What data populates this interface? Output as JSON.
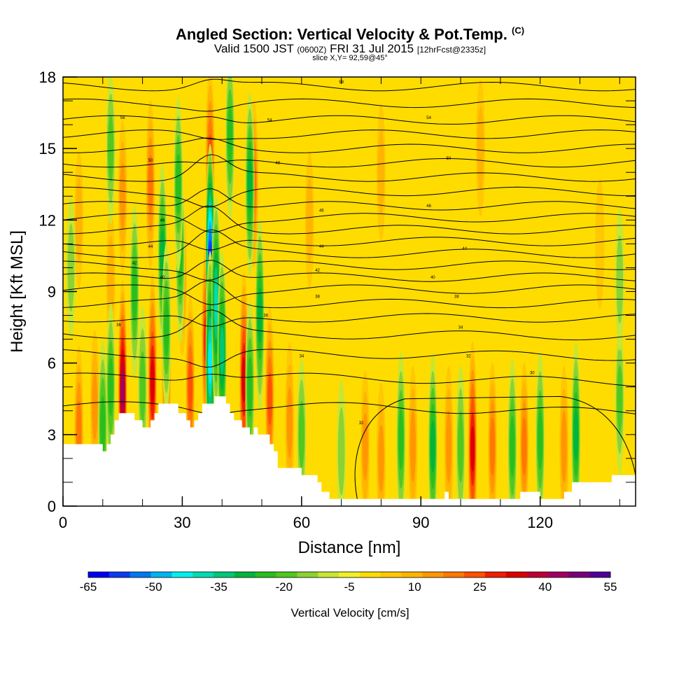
{
  "title": {
    "main": "Angled Section: Vertical Velocity & Pot.Temp.",
    "main_sup": "(C)",
    "valid": "Valid 1500 JST",
    "valid_utc": "(0600Z)",
    "date": "FRI 31 Jul 2015",
    "forecast": "[12hrFcst@2335z]",
    "slice": "slice X,Y= 92,59@45°"
  },
  "chart_data": {
    "type": "heatmap",
    "xlabel": "Distance [nm]",
    "ylabel": "Height [Kft MSL]",
    "xlim": [
      0,
      144
    ],
    "ylim": [
      0,
      18
    ],
    "x_ticks": [
      0,
      30,
      60,
      90,
      120
    ],
    "y_ticks": [
      0,
      3,
      6,
      9,
      12,
      15,
      18
    ],
    "colorbar": {
      "label": "Vertical Velocity [cm/s]",
      "tick_labels": [
        "-65",
        "-50",
        "-35",
        "-20",
        "-5",
        "10",
        "25",
        "40",
        "55"
      ],
      "levels": [
        -65,
        -60,
        -55,
        -50,
        -45,
        -40,
        -35,
        -30,
        -25,
        -20,
        -15,
        -10,
        -5,
        0,
        5,
        10,
        15,
        20,
        25,
        30,
        35,
        40,
        45,
        50,
        55
      ],
      "colors": [
        "#0000f0",
        "#0a3cf0",
        "#0078f0",
        "#00b4f0",
        "#00f0f0",
        "#00dcb4",
        "#00c878",
        "#00b43c",
        "#28be1e",
        "#50c81e",
        "#8cd232",
        "#c8e632",
        "#f0f028",
        "#ffdc00",
        "#ffc800",
        "#ffb400",
        "#ff9600",
        "#ff7800",
        "#ff5000",
        "#f01e00",
        "#dc0000",
        "#be0032",
        "#a00064",
        "#780078",
        "#500096"
      ]
    },
    "terrain_kft": [
      [
        0,
        2.6
      ],
      [
        10,
        2.6
      ],
      [
        10,
        2.3
      ],
      [
        11,
        2.3
      ],
      [
        11,
        2.6
      ],
      [
        12,
        2.6
      ],
      [
        12,
        3.0
      ],
      [
        13,
        3.0
      ],
      [
        13,
        3.6
      ],
      [
        14,
        3.6
      ],
      [
        14,
        3.9
      ],
      [
        18,
        3.9
      ],
      [
        18,
        3.6
      ],
      [
        20,
        3.6
      ],
      [
        20,
        3.3
      ],
      [
        22,
        3.3
      ],
      [
        22,
        3.6
      ],
      [
        23,
        3.6
      ],
      [
        23,
        3.9
      ],
      [
        24,
        3.9
      ],
      [
        24,
        4.3
      ],
      [
        29,
        4.3
      ],
      [
        29,
        3.9
      ],
      [
        31,
        3.9
      ],
      [
        31,
        3.6
      ],
      [
        32,
        3.6
      ],
      [
        32,
        3.3
      ],
      [
        33,
        3.3
      ],
      [
        33,
        3.6
      ],
      [
        34,
        3.6
      ],
      [
        34,
        3.9
      ],
      [
        35,
        3.9
      ],
      [
        35,
        4.3
      ],
      [
        38,
        4.3
      ],
      [
        38,
        4.6
      ],
      [
        41,
        4.6
      ],
      [
        41,
        4.3
      ],
      [
        42,
        4.3
      ],
      [
        42,
        3.9
      ],
      [
        43,
        3.9
      ],
      [
        43,
        3.6
      ],
      [
        45,
        3.6
      ],
      [
        45,
        3.3
      ],
      [
        47,
        3.3
      ],
      [
        47,
        3.0
      ],
      [
        48,
        3.0
      ],
      [
        48,
        3.3
      ],
      [
        49,
        3.3
      ],
      [
        49,
        3.0
      ],
      [
        52,
        3.0
      ],
      [
        52,
        2.6
      ],
      [
        53,
        2.6
      ],
      [
        53,
        2.3
      ],
      [
        54,
        2.3
      ],
      [
        54,
        1.6
      ],
      [
        60,
        1.6
      ],
      [
        60,
        1.3
      ],
      [
        64,
        1.3
      ],
      [
        64,
        1.0
      ],
      [
        65,
        1.0
      ],
      [
        65,
        0.6
      ],
      [
        67,
        0.6
      ],
      [
        67,
        0.3
      ],
      [
        96,
        0.3
      ],
      [
        96,
        0.6
      ],
      [
        97,
        0.6
      ],
      [
        97,
        0.3
      ],
      [
        115,
        0.3
      ],
      [
        115,
        0.6
      ],
      [
        120,
        0.6
      ],
      [
        120,
        0.3
      ],
      [
        126,
        0.3
      ],
      [
        126,
        0.6
      ],
      [
        128,
        0.6
      ],
      [
        128,
        1.0
      ],
      [
        138,
        1.0
      ],
      [
        138,
        1.3
      ],
      [
        144,
        1.3
      ]
    ],
    "updraft_cores": [
      {
        "x": 4,
        "y": 3.2,
        "v": 20
      },
      {
        "x": 8,
        "y": 4.2,
        "v": 15
      },
      {
        "x": 15,
        "y": 4.8,
        "v": 48
      },
      {
        "x": 22.5,
        "y": 5.2,
        "v": 35
      },
      {
        "x": 26,
        "y": 5.5,
        "v": 25
      },
      {
        "x": 36,
        "y": 7.0,
        "v": 30
      },
      {
        "x": 32,
        "y": 5.0,
        "v": 25
      },
      {
        "x": 38,
        "y": 7.8,
        "v": 40
      },
      {
        "x": 45.5,
        "y": 5.3,
        "v": 35
      },
      {
        "x": 52,
        "y": 4.5,
        "v": 25
      },
      {
        "x": 57,
        "y": 3.5,
        "v": 18
      },
      {
        "x": 76,
        "y": 2.5,
        "v": 15
      },
      {
        "x": 80,
        "y": 2.0,
        "v": 15
      },
      {
        "x": 88,
        "y": 2.5,
        "v": 18
      },
      {
        "x": 97,
        "y": 2.5,
        "v": 18
      },
      {
        "x": 103,
        "y": 2.4,
        "v": 35
      },
      {
        "x": 108,
        "y": 2.5,
        "v": 20
      },
      {
        "x": 116,
        "y": 2.5,
        "v": 20
      },
      {
        "x": 126,
        "y": 2.5,
        "v": 18
      },
      {
        "x": 15,
        "y": 13,
        "v": 15
      },
      {
        "x": 22,
        "y": 13.5,
        "v": 20
      },
      {
        "x": 37,
        "y": 14.5,
        "v": 25
      },
      {
        "x": 48,
        "y": 13.5,
        "v": 20
      },
      {
        "x": 30,
        "y": 9.5,
        "v": 15
      },
      {
        "x": 12,
        "y": 9.5,
        "v": 12
      },
      {
        "x": 62,
        "y": 12,
        "v": 10
      },
      {
        "x": 80,
        "y": 14,
        "v": 10
      },
      {
        "x": 105,
        "y": 15,
        "v": 10
      },
      {
        "x": 135,
        "y": 11,
        "v": 8
      },
      {
        "x": 4,
        "y": 12,
        "v": 10
      }
    ],
    "downdraft_cores": [
      {
        "x": 37,
        "y": 10.5,
        "v": -55
      },
      {
        "x": 37,
        "y": 6.0,
        "v": -40
      },
      {
        "x": 38.5,
        "y": 8.5,
        "v": -35
      },
      {
        "x": 40,
        "y": 6.5,
        "v": -30
      },
      {
        "x": 49.5,
        "y": 8.0,
        "v": -28
      },
      {
        "x": 47,
        "y": 5.0,
        "v": -22
      },
      {
        "x": 25,
        "y": 10.5,
        "v": -25
      },
      {
        "x": 29.5,
        "y": 10.5,
        "v": -22
      },
      {
        "x": 26,
        "y": 7.5,
        "v": -20
      },
      {
        "x": 18,
        "y": 9.0,
        "v": -22
      },
      {
        "x": 12,
        "y": 5.0,
        "v": -20
      },
      {
        "x": 10,
        "y": 3.4,
        "v": -20
      },
      {
        "x": 20,
        "y": 5.0,
        "v": -18
      },
      {
        "x": 29,
        "y": 13.5,
        "v": -22
      },
      {
        "x": 47,
        "y": 13.5,
        "v": -25
      },
      {
        "x": 42,
        "y": 15.5,
        "v": -20
      },
      {
        "x": 12,
        "y": 15.0,
        "v": -15
      },
      {
        "x": 85,
        "y": 2.8,
        "v": -22
      },
      {
        "x": 93,
        "y": 2.5,
        "v": -25
      },
      {
        "x": 100,
        "y": 2.5,
        "v": -18
      },
      {
        "x": 113,
        "y": 2.5,
        "v": -22
      },
      {
        "x": 120,
        "y": 2.8,
        "v": -22
      },
      {
        "x": 129,
        "y": 3.0,
        "v": -25
      },
      {
        "x": 140,
        "y": 4.5,
        "v": -15
      },
      {
        "x": 2,
        "y": 10.0,
        "v": -12
      },
      {
        "x": 140,
        "y": 9.5,
        "v": -12
      },
      {
        "x": 70,
        "y": 2.3,
        "v": -12
      },
      {
        "x": 60,
        "y": 3.0,
        "v": -15
      }
    ],
    "isentrope_labels": [
      {
        "x": 70,
        "y": 17.8,
        "text": "58"
      },
      {
        "x": 15,
        "y": 16.3,
        "text": "56"
      },
      {
        "x": 52,
        "y": 16.2,
        "text": "54"
      },
      {
        "x": 92,
        "y": 16.3,
        "text": "54"
      },
      {
        "x": 22,
        "y": 14.5,
        "text": "50"
      },
      {
        "x": 54,
        "y": 14.4,
        "text": "48"
      },
      {
        "x": 97,
        "y": 14.6,
        "text": "50"
      },
      {
        "x": 25,
        "y": 12.0,
        "text": "46"
      },
      {
        "x": 65,
        "y": 12.4,
        "text": "46"
      },
      {
        "x": 92,
        "y": 12.6,
        "text": "46"
      },
      {
        "x": 22,
        "y": 10.9,
        "text": "44"
      },
      {
        "x": 65,
        "y": 10.9,
        "text": "44"
      },
      {
        "x": 101,
        "y": 10.8,
        "text": "44"
      },
      {
        "x": 18,
        "y": 10.2,
        "text": "42"
      },
      {
        "x": 64,
        "y": 9.9,
        "text": "42"
      },
      {
        "x": 25,
        "y": 9.6,
        "text": "40"
      },
      {
        "x": 93,
        "y": 9.6,
        "text": "40"
      },
      {
        "x": 64,
        "y": 8.8,
        "text": "38"
      },
      {
        "x": 99,
        "y": 8.8,
        "text": "38"
      },
      {
        "x": 14,
        "y": 7.6,
        "text": "36"
      },
      {
        "x": 51,
        "y": 8.0,
        "text": "36"
      },
      {
        "x": 100,
        "y": 7.5,
        "text": "34"
      },
      {
        "x": 60,
        "y": 6.3,
        "text": "34"
      },
      {
        "x": 102,
        "y": 6.3,
        "text": "32"
      },
      {
        "x": 118,
        "y": 5.6,
        "text": "30"
      },
      {
        "x": 75,
        "y": 3.5,
        "text": "32"
      }
    ]
  }
}
